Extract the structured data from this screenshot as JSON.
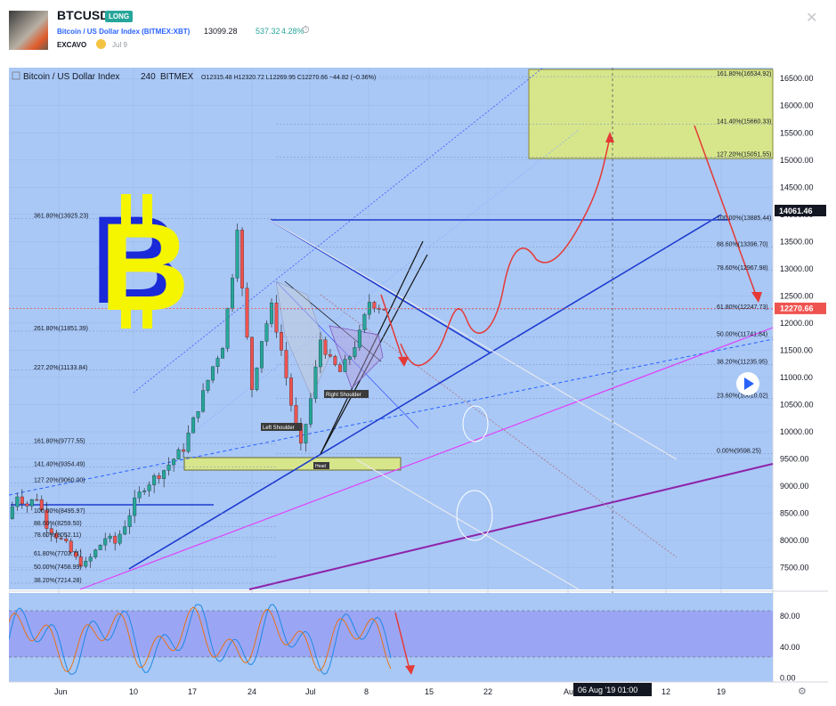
{
  "header": {
    "symbol": "BTCUSD",
    "badge": "LONG",
    "description": "Bitcoin / US Dollar Index (BITMEX:XBT)",
    "price": "13099.28",
    "change": "537.32",
    "change_pct": "4.28%",
    "author": "EXCAVO",
    "date": "Jul 9",
    "close_icon": "close-icon",
    "clock_icon": "clock-icon"
  },
  "legend": {
    "title": "Bitcoin / US Dollar Index",
    "interval": "240",
    "exchange": "BITMEX",
    "ohlc": "O12315.48  H12320.72  L12269.95  C12270.66  −44.82 (−0.36%)"
  },
  "colors": {
    "background": "#a9c8f6",
    "up": "#26a69a",
    "down": "#ef5350",
    "price_label": "#ef5350",
    "accent": "#2962ff",
    "zone": "#dfeb78",
    "oscillator_band": "#9aa6f4"
  },
  "chart_data": {
    "type": "candlestick",
    "y_axis": {
      "ylim": [
        7100,
        16700
      ],
      "ticks": [
        "16500.00",
        "16000.00",
        "15500.00",
        "15000.00",
        "14500.00",
        "14000.00",
        "13500.00",
        "13000.00",
        "12500.00",
        "12000.00",
        "11500.00",
        "11000.00",
        "10500.00",
        "10000.00",
        "9500.00",
        "9000.00",
        "8500.00",
        "8000.00",
        "7500.00"
      ]
    },
    "x_axis": {
      "labels": [
        "Jun",
        "10",
        "17",
        "24",
        "Jul",
        "8",
        "15",
        "22",
        "Au",
        "12",
        "19"
      ],
      "crosshair_label": "06 Aug '19  01:00"
    },
    "price_labels": {
      "high_mark": "14061.46",
      "last_price": "12270.66"
    },
    "price_path": [
      [
        0,
        8400
      ],
      [
        2,
        8850
      ],
      [
        4,
        8650
      ],
      [
        6,
        8800
      ],
      [
        8,
        8300
      ],
      [
        10,
        8100
      ],
      [
        12,
        7900
      ],
      [
        14,
        7650
      ],
      [
        16,
        7550
      ],
      [
        18,
        7800
      ],
      [
        20,
        8050
      ],
      [
        22,
        7950
      ],
      [
        24,
        8300
      ],
      [
        26,
        8700
      ],
      [
        28,
        9000
      ],
      [
        30,
        9150
      ],
      [
        32,
        9300
      ],
      [
        34,
        9500
      ],
      [
        36,
        9700
      ],
      [
        38,
        10200
      ],
      [
        40,
        10700
      ],
      [
        42,
        11200
      ],
      [
        44,
        11600
      ],
      [
        46,
        12900
      ],
      [
        47,
        13800
      ],
      [
        48,
        12600
      ],
      [
        50,
        10800
      ],
      [
        52,
        11700
      ],
      [
        54,
        12300
      ],
      [
        56,
        11500
      ],
      [
        58,
        10500
      ],
      [
        60,
        9700
      ],
      [
        62,
        10600
      ],
      [
        64,
        11700
      ],
      [
        66,
        11300
      ],
      [
        68,
        11100
      ],
      [
        70,
        11400
      ],
      [
        72,
        11800
      ],
      [
        74,
        12400
      ],
      [
        76,
        12300
      ],
      [
        77,
        12270.66
      ]
    ],
    "fib_left": [
      {
        "ratio": "361.80%",
        "value": "13925.23"
      },
      {
        "ratio": "261.80%",
        "value": "11851.39"
      },
      {
        "ratio": "227.20%",
        "value": "11133.84"
      },
      {
        "ratio": "161.80%",
        "value": "9777.55"
      },
      {
        "ratio": "141.40%",
        "value": "9354.49"
      },
      {
        "ratio": "127.20%",
        "value": "9060.00"
      },
      {
        "ratio": "100.00%",
        "value": "8495.97"
      },
      {
        "ratio": "88.60%",
        "value": "8259.50"
      },
      {
        "ratio": "78.60%",
        "value": "8052.11"
      },
      {
        "ratio": "61.80%",
        "value": "7703.71"
      },
      {
        "ratio": "50.00%",
        "value": "7458.99"
      },
      {
        "ratio": "38.20%",
        "value": "7214.28"
      }
    ],
    "fib_right": [
      {
        "ratio": "161.80%",
        "value": "16534.92"
      },
      {
        "ratio": "141.40%",
        "value": "15660.33"
      },
      {
        "ratio": "127.20%",
        "value": "15051.55"
      },
      {
        "ratio": "100.00%",
        "value": "13885.44"
      },
      {
        "ratio": "88.60%",
        "value": "13396.70"
      },
      {
        "ratio": "78.60%",
        "value": "12967.98"
      },
      {
        "ratio": "61.80%",
        "value": "12247.73"
      },
      {
        "ratio": "50.00%",
        "value": "11741.84"
      },
      {
        "ratio": "38.20%",
        "value": "11235.95"
      },
      {
        "ratio": "23.60%",
        "value": "10610.02"
      },
      {
        "ratio": "0.00%",
        "value": "9598.25"
      }
    ],
    "annotations": [
      "Left Shoulder",
      "Right Shoulder",
      "Head"
    ],
    "oscillator": {
      "ticks": [
        "80.00",
        "40.00",
        "0.00"
      ],
      "ylim": [
        -5,
        110
      ],
      "band": [
        20,
        80
      ]
    }
  }
}
